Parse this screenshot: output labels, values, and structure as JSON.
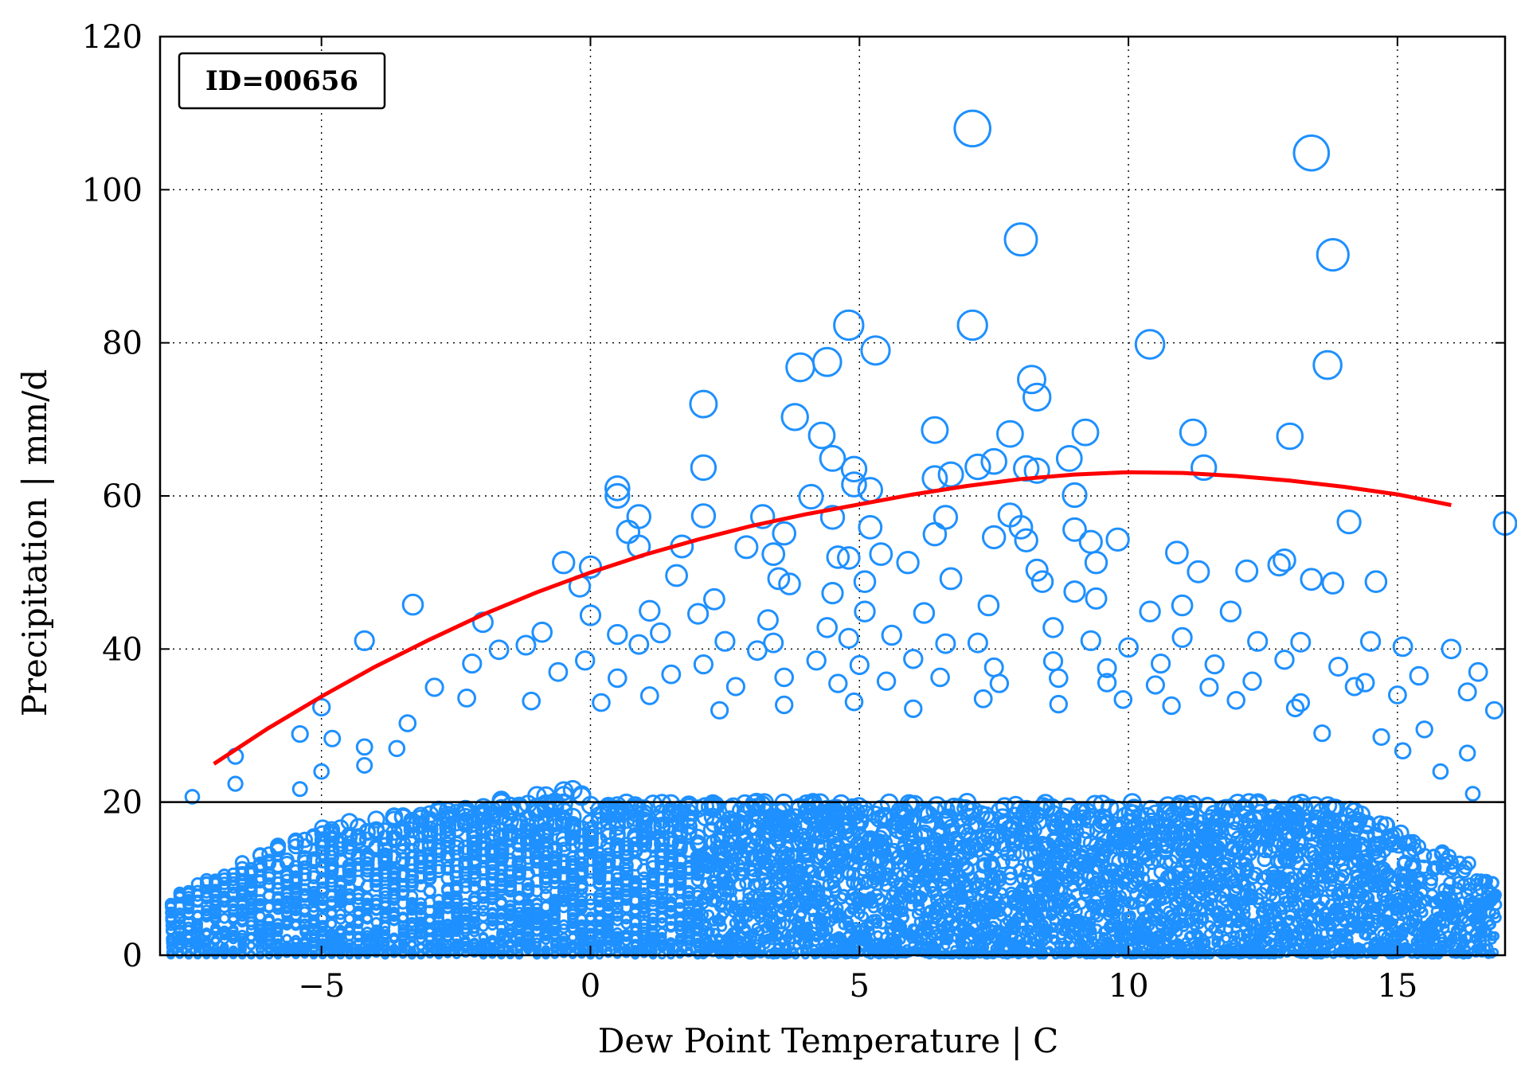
{
  "chart_data": {
    "type": "scatter",
    "title": "",
    "annotation": "ID=00656",
    "xlabel": "Dew Point Temperature | C",
    "ylabel": "Precipitation | mm/d",
    "xlim": [
      -8,
      17
    ],
    "ylim": [
      0,
      120
    ],
    "xticks": [
      -5,
      0,
      5,
      10,
      15
    ],
    "xtick_labels": [
      "−5",
      "0",
      "5",
      "10",
      "15"
    ],
    "yticks": [
      0,
      20,
      40,
      60,
      80,
      100,
      120
    ],
    "ytick_labels": [
      "0",
      "20",
      "40",
      "60",
      "80",
      "100",
      "120"
    ],
    "grid": true,
    "marker_color": "#1e90ff",
    "fit_color": "#ff0000",
    "threshold_line": {
      "y": 20,
      "color": "#000000"
    },
    "fit_curve": {
      "x": [
        -7.0,
        -6.0,
        -5.0,
        -4.0,
        -3.0,
        -2.0,
        -1.0,
        0.0,
        1.0,
        2.0,
        3.0,
        4.0,
        5.0,
        6.0,
        7.0,
        8.0,
        9.0,
        10.0,
        11.0,
        12.0,
        13.0,
        14.0,
        15.0,
        16.0
      ],
      "y": [
        25.0,
        29.6,
        33.8,
        37.7,
        41.2,
        44.5,
        47.4,
        50.0,
        52.3,
        54.3,
        56.1,
        57.6,
        58.9,
        60.2,
        61.3,
        62.2,
        62.8,
        63.1,
        63.0,
        62.6,
        62.0,
        61.2,
        60.2,
        58.8
      ]
    },
    "points_high": [
      [
        7.1,
        108.0
      ],
      [
        13.4,
        104.8
      ],
      [
        8.0,
        93.5
      ],
      [
        13.8,
        91.5
      ],
      [
        4.8,
        82.3
      ],
      [
        7.1,
        82.3
      ],
      [
        5.3,
        79.0
      ],
      [
        10.4,
        79.8
      ],
      [
        3.9,
        76.8
      ],
      [
        4.4,
        77.5
      ],
      [
        13.7,
        77.1
      ],
      [
        8.2,
        75.2
      ],
      [
        8.3,
        72.9
      ],
      [
        2.1,
        72.0
      ],
      [
        3.8,
        70.3
      ],
      [
        4.3,
        67.9
      ],
      [
        6.4,
        68.6
      ],
      [
        7.8,
        68.1
      ],
      [
        9.2,
        68.3
      ],
      [
        11.2,
        68.3
      ],
      [
        13.0,
        67.8
      ],
      [
        4.5,
        64.9
      ],
      [
        7.5,
        64.5
      ],
      [
        8.9,
        64.9
      ],
      [
        2.1,
        63.7
      ],
      [
        4.9,
        63.5
      ],
      [
        6.7,
        62.8
      ],
      [
        7.2,
        63.8
      ],
      [
        8.1,
        63.6
      ],
      [
        8.3,
        63.3
      ],
      [
        11.4,
        63.7
      ],
      [
        6.4,
        62.3
      ],
      [
        0.5,
        61.0
      ],
      [
        4.9,
        61.5
      ],
      [
        5.2,
        60.8
      ],
      [
        0.5,
        60.0
      ],
      [
        4.1,
        59.9
      ],
      [
        9.0,
        60.1
      ],
      [
        2.1,
        57.4
      ],
      [
        0.9,
        57.3
      ],
      [
        4.5,
        57.2
      ],
      [
        6.6,
        57.2
      ],
      [
        7.8,
        57.5
      ],
      [
        3.2,
        57.3
      ],
      [
        8.0,
        55.9
      ],
      [
        9.8,
        54.3
      ],
      [
        0.7,
        55.3
      ],
      [
        3.6,
        55.1
      ],
      [
        5.2,
        55.9
      ],
      [
        6.4,
        55.0
      ],
      [
        7.5,
        54.6
      ],
      [
        8.1,
        54.2
      ],
      [
        9.0,
        55.6
      ],
      [
        9.3,
        54.0
      ],
      [
        14.1,
        56.6
      ],
      [
        17.0,
        56.4
      ],
      [
        0.9,
        53.4
      ],
      [
        2.9,
        53.3
      ],
      [
        1.7,
        53.4
      ],
      [
        3.4,
        52.4
      ],
      [
        4.6,
        52.0
      ],
      [
        5.4,
        52.4
      ],
      [
        10.9,
        52.6
      ],
      [
        -0.5,
        51.3
      ],
      [
        0.0,
        50.7
      ],
      [
        4.8,
        51.9
      ],
      [
        5.9,
        51.3
      ],
      [
        6.7,
        49.2
      ],
      [
        8.3,
        50.3
      ],
      [
        9.4,
        51.3
      ],
      [
        11.3,
        50.1
      ],
      [
        12.2,
        50.2
      ],
      [
        12.8,
        51.0
      ],
      [
        12.9,
        51.6
      ],
      [
        13.4,
        49.1
      ],
      [
        13.8,
        48.6
      ],
      [
        14.6,
        48.8
      ],
      [
        -0.2,
        48.2
      ],
      [
        1.6,
        49.6
      ],
      [
        3.5,
        49.2
      ],
      [
        3.7,
        48.5
      ],
      [
        4.5,
        47.3
      ],
      [
        5.1,
        48.8
      ],
      [
        7.4,
        45.7
      ],
      [
        8.4,
        48.8
      ],
      [
        9.0,
        47.5
      ],
      [
        9.4,
        46.6
      ],
      [
        11.0,
        45.7
      ],
      [
        -3.3,
        45.8
      ],
      [
        0.0,
        44.4
      ],
      [
        1.1,
        45.0
      ],
      [
        2.0,
        44.6
      ],
      [
        2.3,
        46.5
      ],
      [
        3.3,
        43.8
      ],
      [
        4.4,
        42.8
      ],
      [
        5.1,
        44.9
      ],
      [
        6.2,
        44.7
      ],
      [
        10.4,
        44.9
      ],
      [
        11.9,
        44.9
      ],
      [
        -2.0,
        43.5
      ],
      [
        -1.2,
        40.5
      ],
      [
        -0.9,
        42.2
      ],
      [
        0.5,
        41.9
      ],
      [
        1.3,
        42.1
      ],
      [
        2.5,
        41.0
      ],
      [
        3.4,
        40.8
      ],
      [
        4.8,
        41.4
      ],
      [
        5.6,
        41.8
      ],
      [
        6.6,
        40.7
      ],
      [
        7.2,
        40.8
      ],
      [
        8.6,
        42.8
      ],
      [
        9.3,
        41.1
      ],
      [
        10.0,
        40.2
      ],
      [
        11.0,
        41.5
      ],
      [
        12.4,
        41.0
      ],
      [
        13.2,
        40.9
      ],
      [
        14.5,
        41.0
      ],
      [
        15.1,
        40.3
      ],
      [
        16.0,
        40.0
      ],
      [
        -4.2,
        41.1
      ],
      [
        -1.7,
        39.9
      ],
      [
        -0.1,
        38.5
      ],
      [
        0.9,
        40.6
      ],
      [
        2.1,
        38.0
      ],
      [
        3.1,
        39.8
      ],
      [
        4.2,
        38.5
      ],
      [
        5.0,
        37.9
      ],
      [
        6.0,
        38.7
      ],
      [
        7.5,
        37.6
      ],
      [
        8.6,
        38.4
      ],
      [
        9.6,
        37.5
      ],
      [
        10.6,
        38.1
      ],
      [
        11.6,
        38.0
      ],
      [
        12.9,
        38.6
      ],
      [
        13.9,
        37.7
      ],
      [
        14.4,
        35.6
      ],
      [
        15.4,
        36.5
      ],
      [
        16.5,
        37.0
      ],
      [
        -2.2,
        38.1
      ],
      [
        -2.9,
        35.0
      ],
      [
        -0.6,
        37.0
      ],
      [
        0.5,
        36.2
      ],
      [
        1.5,
        36.7
      ],
      [
        2.7,
        35.1
      ],
      [
        3.6,
        36.3
      ],
      [
        4.6,
        35.5
      ],
      [
        5.5,
        35.8
      ],
      [
        6.5,
        36.3
      ],
      [
        7.6,
        35.5
      ],
      [
        8.7,
        36.2
      ],
      [
        9.6,
        35.6
      ],
      [
        10.5,
        35.3
      ],
      [
        11.5,
        35.0
      ],
      [
        12.3,
        35.8
      ],
      [
        14.2,
        35.1
      ],
      [
        15.0,
        34.0
      ],
      [
        16.3,
        34.4
      ],
      [
        -3.4,
        30.3
      ],
      [
        -2.3,
        33.6
      ],
      [
        -1.1,
        33.2
      ],
      [
        0.2,
        33.0
      ],
      [
        1.1,
        33.9
      ],
      [
        2.4,
        32.0
      ],
      [
        3.6,
        32.7
      ],
      [
        4.9,
        33.1
      ],
      [
        6.0,
        32.2
      ],
      [
        7.3,
        33.5
      ],
      [
        8.7,
        32.8
      ],
      [
        9.9,
        33.4
      ],
      [
        10.8,
        32.6
      ],
      [
        12.0,
        33.3
      ],
      [
        13.2,
        33.0
      ],
      [
        13.1,
        32.3
      ],
      [
        -5.0,
        32.4
      ],
      [
        16.8,
        32.0
      ],
      [
        -3.6,
        27.0
      ],
      [
        -4.2,
        27.2
      ],
      [
        -4.8,
        28.3
      ],
      [
        -5.4,
        28.9
      ],
      [
        -6.6,
        26.0
      ],
      [
        15.5,
        29.5
      ],
      [
        16.3,
        26.4
      ],
      [
        14.7,
        28.5
      ],
      [
        13.6,
        29.0
      ],
      [
        15.1,
        26.7
      ],
      [
        15.8,
        24.0
      ],
      [
        -5.0,
        24.0
      ],
      [
        -4.2,
        24.8
      ],
      [
        -6.6,
        22.4
      ],
      [
        -5.4,
        21.7
      ],
      [
        -7.4,
        20.7
      ],
      [
        16.4,
        21.1
      ]
    ]
  }
}
